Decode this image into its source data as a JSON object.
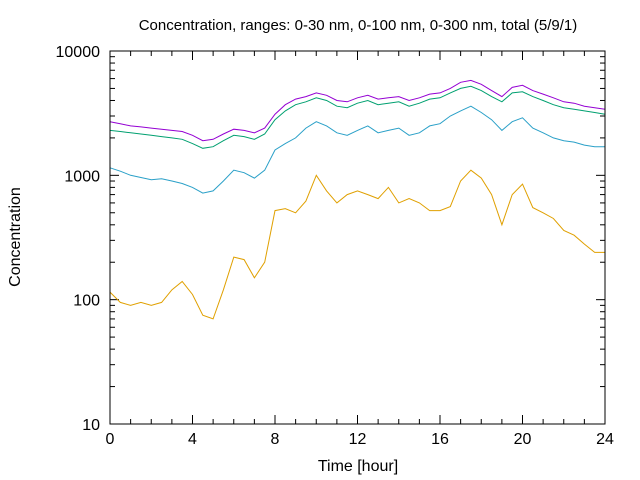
{
  "chart_data": {
    "type": "line",
    "title": "Concentration, ranges: 0-30 nm, 0-100 nm, 0-300 nm, total (5/9/1)",
    "xlabel": "Time [hour]",
    "ylabel": "Concentration",
    "xlim": [
      0,
      24
    ],
    "ylim": [
      10,
      10000
    ],
    "yscale": "log",
    "grid": false,
    "legend": "none",
    "xticks": [
      0,
      4,
      8,
      12,
      16,
      20,
      24
    ],
    "yticks": [
      10,
      100,
      1000,
      10000
    ],
    "series": [
      {
        "color": "#e0a000",
        "x": [
          0,
          0.5,
          1,
          1.5,
          2,
          2.5,
          3,
          3.5,
          4,
          4.5,
          5,
          5.5,
          6,
          6.5,
          7,
          7.5,
          8,
          8.5,
          9,
          9.5,
          10,
          10.5,
          11,
          11.5,
          12,
          12.5,
          13,
          13.5,
          14,
          14.5,
          15,
          15.5,
          16,
          16.5,
          17,
          17.5,
          18,
          18.5,
          19,
          19.5,
          20,
          20.5,
          21,
          21.5,
          22,
          22.5,
          23,
          23.5,
          24
        ],
        "values": [
          115,
          95,
          90,
          95,
          90,
          95,
          120,
          140,
          110,
          75,
          70,
          120,
          220,
          210,
          150,
          200,
          520,
          540,
          500,
          620,
          1000,
          750,
          600,
          700,
          750,
          700,
          650,
          800,
          600,
          650,
          600,
          520,
          520,
          560,
          900,
          1100,
          950,
          700,
          400,
          700,
          850,
          550,
          500,
          450,
          360,
          330,
          280,
          240,
          240
        ]
      },
      {
        "color": "#2aa0c8",
        "x": [
          0,
          0.5,
          1,
          1.5,
          2,
          2.5,
          3,
          3.5,
          4,
          4.5,
          5,
          5.5,
          6,
          6.5,
          7,
          7.5,
          8,
          8.5,
          9,
          9.5,
          10,
          10.5,
          11,
          11.5,
          12,
          12.5,
          13,
          13.5,
          14,
          14.5,
          15,
          15.5,
          16,
          16.5,
          17,
          17.5,
          18,
          18.5,
          19,
          19.5,
          20,
          20.5,
          21,
          21.5,
          22,
          22.5,
          23,
          23.5,
          24
        ],
        "values": [
          1150,
          1080,
          1000,
          960,
          920,
          940,
          900,
          860,
          800,
          720,
          750,
          900,
          1100,
          1050,
          950,
          1100,
          1600,
          1800,
          2000,
          2400,
          2700,
          2500,
          2200,
          2100,
          2300,
          2500,
          2200,
          2300,
          2400,
          2100,
          2200,
          2500,
          2600,
          3000,
          3300,
          3600,
          3200,
          2800,
          2300,
          2700,
          2900,
          2400,
          2200,
          2000,
          1900,
          1850,
          1750,
          1700,
          1700
        ]
      },
      {
        "color": "#00a070",
        "x": [
          0,
          0.5,
          1,
          1.5,
          2,
          2.5,
          3,
          3.5,
          4,
          4.5,
          5,
          5.5,
          6,
          6.5,
          7,
          7.5,
          8,
          8.5,
          9,
          9.5,
          10,
          10.5,
          11,
          11.5,
          12,
          12.5,
          13,
          13.5,
          14,
          14.5,
          15,
          15.5,
          16,
          16.5,
          17,
          17.5,
          18,
          18.5,
          19,
          19.5,
          20,
          20.5,
          21,
          21.5,
          22,
          22.5,
          23,
          23.5,
          24
        ],
        "values": [
          2300,
          2250,
          2200,
          2150,
          2100,
          2050,
          2000,
          1950,
          1800,
          1650,
          1700,
          1900,
          2100,
          2050,
          1950,
          2150,
          2800,
          3300,
          3700,
          3900,
          4200,
          4000,
          3600,
          3500,
          3800,
          4000,
          3700,
          3800,
          3900,
          3600,
          3800,
          4100,
          4200,
          4600,
          5000,
          5200,
          4800,
          4300,
          3900,
          4600,
          4700,
          4300,
          4000,
          3700,
          3500,
          3400,
          3300,
          3200,
          3100
        ]
      },
      {
        "color": "#9400d3",
        "x": [
          0,
          0.5,
          1,
          1.5,
          2,
          2.5,
          3,
          3.5,
          4,
          4.5,
          5,
          5.5,
          6,
          6.5,
          7,
          7.5,
          8,
          8.5,
          9,
          9.5,
          10,
          10.5,
          11,
          11.5,
          12,
          12.5,
          13,
          13.5,
          14,
          14.5,
          15,
          15.5,
          16,
          16.5,
          17,
          17.5,
          18,
          18.5,
          19,
          19.5,
          20,
          20.5,
          21,
          21.5,
          22,
          22.5,
          23,
          23.5,
          24
        ],
        "values": [
          2700,
          2600,
          2500,
          2450,
          2400,
          2350,
          2300,
          2250,
          2100,
          1900,
          1950,
          2150,
          2350,
          2300,
          2200,
          2400,
          3100,
          3700,
          4100,
          4300,
          4600,
          4400,
          4000,
          3900,
          4200,
          4400,
          4100,
          4200,
          4300,
          4000,
          4200,
          4500,
          4600,
          5000,
          5600,
          5800,
          5400,
          4800,
          4300,
          5100,
          5300,
          4800,
          4500,
          4200,
          3900,
          3800,
          3600,
          3500,
          3400
        ]
      }
    ]
  }
}
